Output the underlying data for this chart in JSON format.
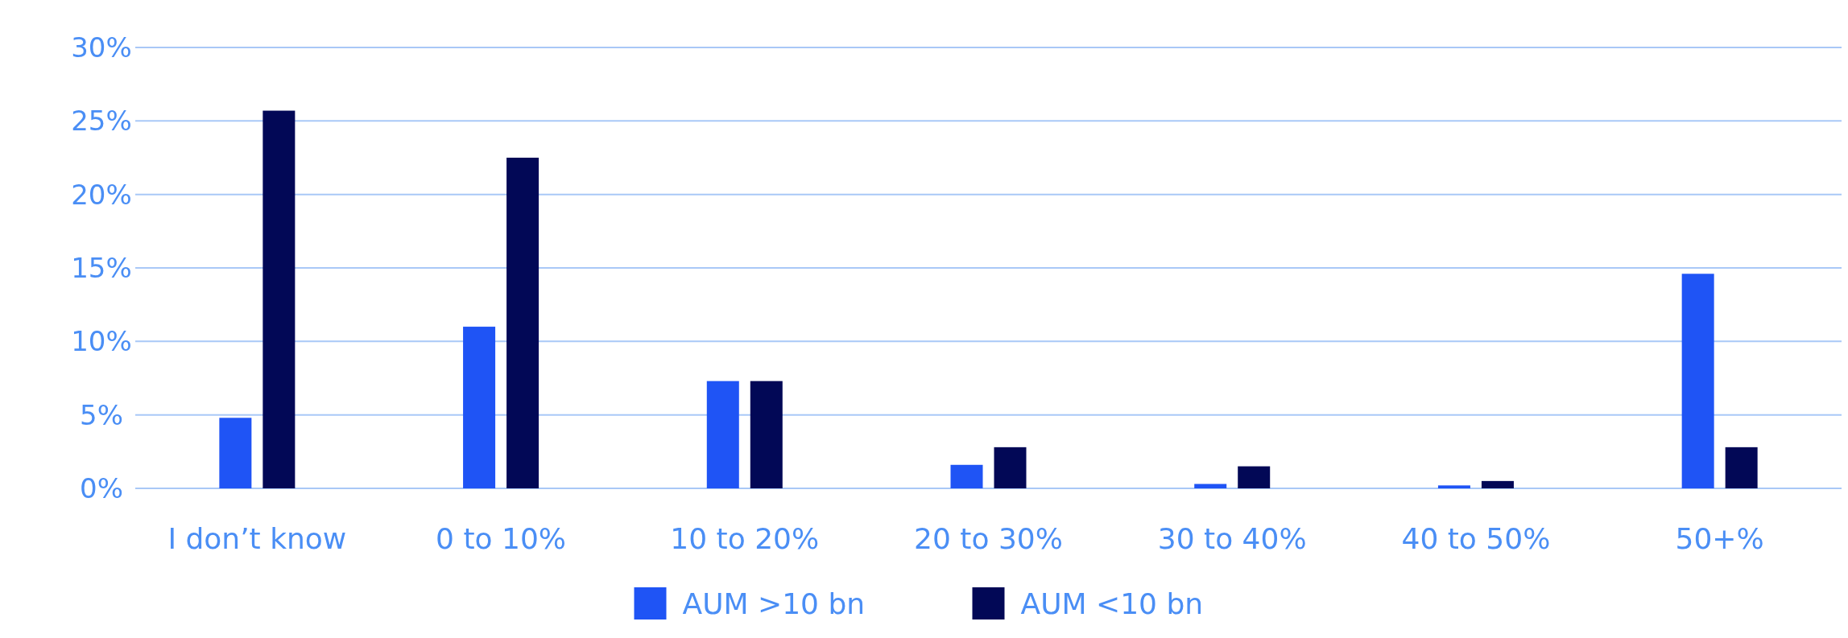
{
  "chart_data": {
    "type": "bar",
    "categories": [
      "I don’t know",
      "0 to 10%",
      "10 to 20%",
      "20 to 30%",
      "30 to 40%",
      "40 to 50%",
      "50+%"
    ],
    "series": [
      {
        "name": "AUM >10 bn",
        "color": "#1f54f5",
        "values": [
          4.8,
          11.0,
          7.3,
          1.6,
          0.3,
          0.2,
          14.6
        ]
      },
      {
        "name": "AUM <10 bn",
        "color": "#020856",
        "values": [
          25.7,
          22.5,
          7.3,
          2.8,
          1.5,
          0.5,
          2.8
        ]
      }
    ],
    "ylim": [
      0,
      30
    ],
    "yticks": [
      {
        "value": 0,
        "label": "0%"
      },
      {
        "value": 5,
        "label": "5%"
      },
      {
        "value": 10,
        "label": "10%"
      },
      {
        "value": 15,
        "label": "15%"
      },
      {
        "value": 20,
        "label": "20%"
      },
      {
        "value": 25,
        "label": "25%"
      },
      {
        "value": 30,
        "label": "30%"
      }
    ],
    "grid": "y",
    "legend": "bottom"
  }
}
